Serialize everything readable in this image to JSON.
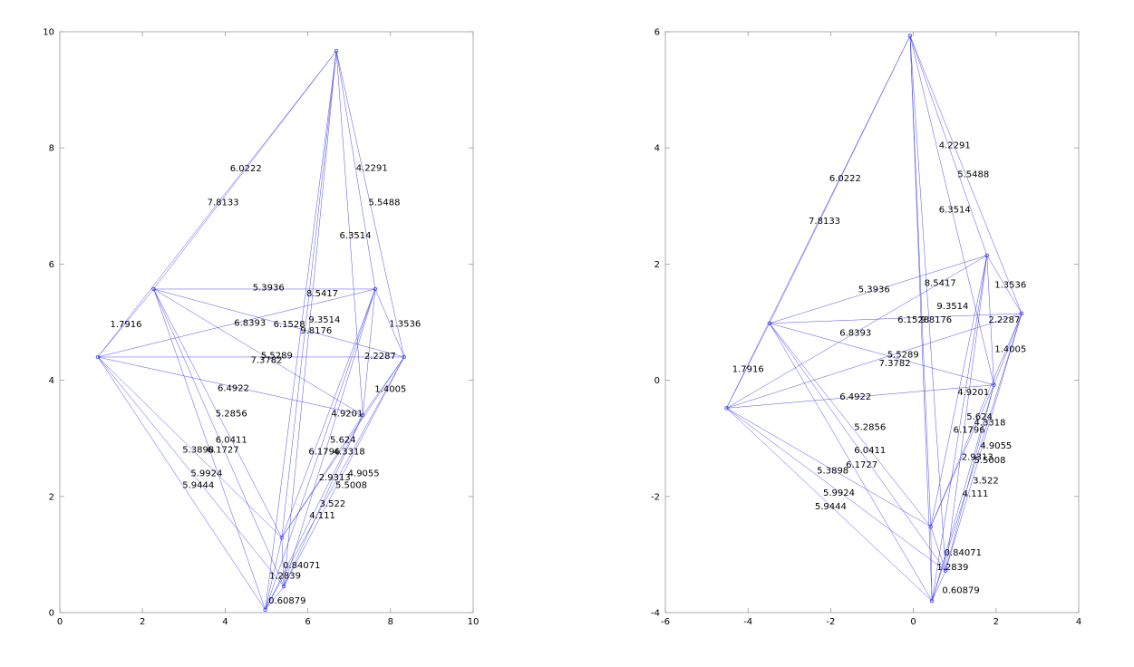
{
  "figure": {
    "edge_color": "#3a3aee",
    "background": "#ffffff"
  },
  "chart_data": [
    {
      "type": "scatter",
      "title": "",
      "xlabel": "",
      "ylabel": "",
      "xlim": [
        0,
        10
      ],
      "ylim": [
        0,
        10
      ],
      "xticks": [
        "0",
        "2",
        "4",
        "6",
        "8",
        "10"
      ],
      "yticks": [
        "0",
        "2",
        "4",
        "6",
        "8",
        "10"
      ],
      "grid": false,
      "nodes": [
        {
          "x": 0.92,
          "y": 4.4
        },
        {
          "x": 2.27,
          "y": 5.57
        },
        {
          "x": 6.69,
          "y": 9.67
        },
        {
          "x": 7.63,
          "y": 5.57
        },
        {
          "x": 8.33,
          "y": 4.4
        },
        {
          "x": 7.33,
          "y": 3.4
        },
        {
          "x": 5.37,
          "y": 1.29
        },
        {
          "x": 5.42,
          "y": 0.45
        },
        {
          "x": 4.97,
          "y": 0.05
        }
      ],
      "edges": [
        {
          "from": 0,
          "to": 1,
          "label": "1.7916"
        },
        {
          "from": 0,
          "to": 2,
          "label": "6.0222"
        },
        {
          "from": 1,
          "to": 2,
          "label": "7.8133"
        },
        {
          "from": 2,
          "to": 4,
          "label": "4.2291"
        },
        {
          "from": 2,
          "to": 5,
          "label": "5.5488"
        },
        {
          "from": 2,
          "to": 3,
          "label": "6.3514"
        },
        {
          "from": 1,
          "to": 3,
          "label": "5.3936"
        },
        {
          "from": 1,
          "to": 4,
          "label": "8.5417"
        },
        {
          "from": 0,
          "to": 3,
          "label": "6.8393"
        },
        {
          "from": 2,
          "to": 7,
          "label": "9.3514"
        },
        {
          "from": 2,
          "to": 6,
          "label": "6.1528"
        },
        {
          "from": 2,
          "to": 8,
          "label": "9.8176"
        },
        {
          "from": 3,
          "to": 4,
          "label": "1.3536"
        },
        {
          "from": 1,
          "to": 5,
          "label": "5.5289"
        },
        {
          "from": 0,
          "to": 4,
          "label": "7.3782"
        },
        {
          "from": 3,
          "to": 5,
          "label": "2.2287"
        },
        {
          "from": 4,
          "to": 5,
          "label": "1.4005"
        },
        {
          "from": 0,
          "to": 5,
          "label": "6.4922"
        },
        {
          "from": 5,
          "to": 7,
          "label": "4.9201"
        },
        {
          "from": 1,
          "to": 6,
          "label": "5.2856"
        },
        {
          "from": 3,
          "to": 6,
          "label": "5.624"
        },
        {
          "from": 1,
          "to": 7,
          "label": "6.0411"
        },
        {
          "from": 3,
          "to": 8,
          "label": "6.1796"
        },
        {
          "from": 4,
          "to": 6,
          "label": "4.3318"
        },
        {
          "from": 0,
          "to": 6,
          "label": "5.3898"
        },
        {
          "from": 1,
          "to": 8,
          "label": "6.1727"
        },
        {
          "from": 5,
          "to": 6,
          "label": "2.9313"
        },
        {
          "from": 4,
          "to": 7,
          "label": "4.9055"
        },
        {
          "from": 4,
          "to": 8,
          "label": "5.5008"
        },
        {
          "from": 0,
          "to": 7,
          "label": "5.9924"
        },
        {
          "from": 0,
          "to": 8,
          "label": "5.9444"
        },
        {
          "from": 5,
          "to": 8,
          "label": "3.522"
        },
        {
          "from": 3,
          "to": 7,
          "label": "4.111"
        },
        {
          "from": 6,
          "to": 7,
          "label": "0.84071"
        },
        {
          "from": 6,
          "to": 8,
          "label": "1.2839"
        },
        {
          "from": 7,
          "to": 8,
          "label": "0.60879"
        }
      ],
      "labels": [
        {
          "text": "1.7916",
          "x": 1.6,
          "y": 4.97
        },
        {
          "text": "6.0222",
          "x": 4.5,
          "y": 7.65
        },
        {
          "text": "7.8133",
          "x": 3.95,
          "y": 7.07
        },
        {
          "text": "4.2291",
          "x": 7.55,
          "y": 7.66
        },
        {
          "text": "5.5488",
          "x": 7.85,
          "y": 7.07
        },
        {
          "text": "6.3514",
          "x": 7.15,
          "y": 6.5
        },
        {
          "text": "5.3936",
          "x": 5.05,
          "y": 5.6
        },
        {
          "text": "8.5417",
          "x": 6.35,
          "y": 5.5
        },
        {
          "text": "6.8393",
          "x": 4.6,
          "y": 4.99
        },
        {
          "text": "9.3514",
          "x": 6.4,
          "y": 5.05
        },
        {
          "text": "6.1528",
          "x": 5.55,
          "y": 4.97
        },
        {
          "text": "9.8176",
          "x": 6.2,
          "y": 4.86
        },
        {
          "text": "1.3536",
          "x": 8.35,
          "y": 4.98
        },
        {
          "text": "5.5289",
          "x": 5.25,
          "y": 4.43
        },
        {
          "text": "7.3782",
          "x": 5.0,
          "y": 4.35
        },
        {
          "text": "2.2287",
          "x": 7.75,
          "y": 4.42
        },
        {
          "text": "1.4005",
          "x": 8.0,
          "y": 3.85
        },
        {
          "text": "6.4922",
          "x": 4.2,
          "y": 3.87
        },
        {
          "text": "4.9201",
          "x": 6.95,
          "y": 3.43
        },
        {
          "text": "5.2856",
          "x": 4.15,
          "y": 3.43
        },
        {
          "text": "5.624",
          "x": 6.85,
          "y": 2.98
        },
        {
          "text": "6.0411",
          "x": 4.15,
          "y": 2.98
        },
        {
          "text": "6.1796",
          "x": 6.4,
          "y": 2.78
        },
        {
          "text": "4.3318",
          "x": 7.0,
          "y": 2.78
        },
        {
          "text": "5.3898",
          "x": 3.35,
          "y": 2.81
        },
        {
          "text": "6.1727",
          "x": 3.95,
          "y": 2.81
        },
        {
          "text": "2.9313",
          "x": 6.65,
          "y": 2.33
        },
        {
          "text": "4.9055",
          "x": 7.35,
          "y": 2.4
        },
        {
          "text": "5.5008",
          "x": 7.05,
          "y": 2.2
        },
        {
          "text": "5.9924",
          "x": 3.55,
          "y": 2.4
        },
        {
          "text": "5.9444",
          "x": 3.35,
          "y": 2.2
        },
        {
          "text": "3.522",
          "x": 6.6,
          "y": 1.88
        },
        {
          "text": "4.111",
          "x": 6.35,
          "y": 1.68
        },
        {
          "text": "0.84071",
          "x": 5.85,
          "y": 0.82
        },
        {
          "text": "1.2839",
          "x": 5.45,
          "y": 0.64
        },
        {
          "text": "0.60879",
          "x": 5.5,
          "y": 0.21
        }
      ]
    },
    {
      "type": "scatter",
      "title": "",
      "xlabel": "",
      "ylabel": "",
      "xlim": [
        -6,
        4
      ],
      "ylim": [
        -4,
        6
      ],
      "xticks": [
        "-6",
        "-4",
        "-2",
        "0",
        "2",
        "4"
      ],
      "yticks": [
        "-4",
        "-2",
        "0",
        "2",
        "4",
        "6"
      ],
      "grid": false,
      "nodes": [
        {
          "x": -4.52,
          "y": -0.48
        },
        {
          "x": -3.48,
          "y": 0.98
        },
        {
          "x": -0.08,
          "y": 5.93
        },
        {
          "x": 1.78,
          "y": 2.15
        },
        {
          "x": 2.62,
          "y": 1.15
        },
        {
          "x": 1.95,
          "y": -0.08
        },
        {
          "x": 0.42,
          "y": -2.52
        },
        {
          "x": 0.78,
          "y": -3.28
        },
        {
          "x": 0.45,
          "y": -3.8
        }
      ],
      "edges": [
        {
          "from": 0,
          "to": 1,
          "label": "1.7916"
        },
        {
          "from": 0,
          "to": 2,
          "label": "6.0222"
        },
        {
          "from": 1,
          "to": 2,
          "label": "7.8133"
        },
        {
          "from": 2,
          "to": 4,
          "label": "4.2291"
        },
        {
          "from": 2,
          "to": 3,
          "label": "5.5488"
        },
        {
          "from": 2,
          "to": 5,
          "label": "6.3514"
        },
        {
          "from": 1,
          "to": 3,
          "label": "5.3936"
        },
        {
          "from": 2,
          "to": 6,
          "label": "8.5417"
        },
        {
          "from": 0,
          "to": 3,
          "label": "6.8393"
        },
        {
          "from": 2,
          "to": 7,
          "label": "9.3514"
        },
        {
          "from": 1,
          "to": 4,
          "label": "6.1528"
        },
        {
          "from": 2,
          "to": 8,
          "label": "9.8176"
        },
        {
          "from": 3,
          "to": 4,
          "label": "1.3536"
        },
        {
          "from": 1,
          "to": 5,
          "label": "5.5289"
        },
        {
          "from": 0,
          "to": 4,
          "label": "7.3782"
        },
        {
          "from": 3,
          "to": 5,
          "label": "2.2287"
        },
        {
          "from": 4,
          "to": 5,
          "label": "1.4005"
        },
        {
          "from": 0,
          "to": 5,
          "label": "6.4922"
        },
        {
          "from": 5,
          "to": 7,
          "label": "4.9201"
        },
        {
          "from": 1,
          "to": 6,
          "label": "5.2856"
        },
        {
          "from": 3,
          "to": 6,
          "label": "5.624"
        },
        {
          "from": 1,
          "to": 7,
          "label": "6.0411"
        },
        {
          "from": 3,
          "to": 8,
          "label": "6.1796"
        },
        {
          "from": 4,
          "to": 6,
          "label": "4.3318"
        },
        {
          "from": 0,
          "to": 6,
          "label": "5.3898"
        },
        {
          "from": 1,
          "to": 8,
          "label": "6.1727"
        },
        {
          "from": 5,
          "to": 6,
          "label": "2.9313"
        },
        {
          "from": 4,
          "to": 7,
          "label": "4.9055"
        },
        {
          "from": 4,
          "to": 8,
          "label": "5.5008"
        },
        {
          "from": 0,
          "to": 7,
          "label": "5.9924"
        },
        {
          "from": 0,
          "to": 8,
          "label": "5.9444"
        },
        {
          "from": 5,
          "to": 8,
          "label": "3.522"
        },
        {
          "from": 3,
          "to": 7,
          "label": "4.111"
        },
        {
          "from": 6,
          "to": 7,
          "label": "0.84071"
        },
        {
          "from": 6,
          "to": 8,
          "label": "1.2839"
        },
        {
          "from": 7,
          "to": 8,
          "label": "0.60879"
        }
      ],
      "labels": [
        {
          "text": "1.7916",
          "x": -4.0,
          "y": 0.2
        },
        {
          "text": "6.0222",
          "x": -1.65,
          "y": 3.48
        },
        {
          "text": "7.8133",
          "x": -2.15,
          "y": 2.75
        },
        {
          "text": "4.2291",
          "x": 1.0,
          "y": 4.05
        },
        {
          "text": "5.5488",
          "x": 1.45,
          "y": 3.55
        },
        {
          "text": "6.3514",
          "x": 1.0,
          "y": 2.94
        },
        {
          "text": "5.3936",
          "x": -0.95,
          "y": 1.57
        },
        {
          "text": "8.5417",
          "x": 0.65,
          "y": 1.68
        },
        {
          "text": "6.8393",
          "x": -1.4,
          "y": 0.82
        },
        {
          "text": "9.3514",
          "x": 0.95,
          "y": 1.28
        },
        {
          "text": "6.1528",
          "x": 0.0,
          "y": 1.05
        },
        {
          "text": "9.8176",
          "x": 0.55,
          "y": 1.05
        },
        {
          "text": "1.3536",
          "x": 2.35,
          "y": 1.65
        },
        {
          "text": "5.5289",
          "x": -0.25,
          "y": 0.45
        },
        {
          "text": "7.3782",
          "x": -0.45,
          "y": 0.3
        },
        {
          "text": "2.2287",
          "x": 2.2,
          "y": 1.05
        },
        {
          "text": "1.4005",
          "x": 2.35,
          "y": 0.54
        },
        {
          "text": "6.4922",
          "x": -1.4,
          "y": -0.28
        },
        {
          "text": "4.9201",
          "x": 1.45,
          "y": -0.2
        },
        {
          "text": "5.2856",
          "x": -1.05,
          "y": -0.8
        },
        {
          "text": "5.624",
          "x": 1.6,
          "y": -0.62
        },
        {
          "text": "6.0411",
          "x": -1.05,
          "y": -1.2
        },
        {
          "text": "6.1796",
          "x": 1.35,
          "y": -0.85
        },
        {
          "text": "4.3318",
          "x": 1.85,
          "y": -0.72
        },
        {
          "text": "5.3898",
          "x": -1.95,
          "y": -1.55
        },
        {
          "text": "6.1727",
          "x": -1.25,
          "y": -1.45
        },
        {
          "text": "2.9313",
          "x": 1.55,
          "y": -1.32
        },
        {
          "text": "4.9055",
          "x": 2.0,
          "y": -1.12
        },
        {
          "text": "5.5008",
          "x": 1.85,
          "y": -1.37
        },
        {
          "text": "5.9924",
          "x": -1.8,
          "y": -1.93
        },
        {
          "text": "5.9444",
          "x": -2.0,
          "y": -2.17
        },
        {
          "text": "3.522",
          "x": 1.75,
          "y": -1.72
        },
        {
          "text": "4.111",
          "x": 1.5,
          "y": -1.95
        },
        {
          "text": "0.84071",
          "x": 1.2,
          "y": -2.96
        },
        {
          "text": "1.2839",
          "x": 0.95,
          "y": -3.21
        },
        {
          "text": "0.60879",
          "x": 1.15,
          "y": -3.61
        }
      ]
    }
  ]
}
